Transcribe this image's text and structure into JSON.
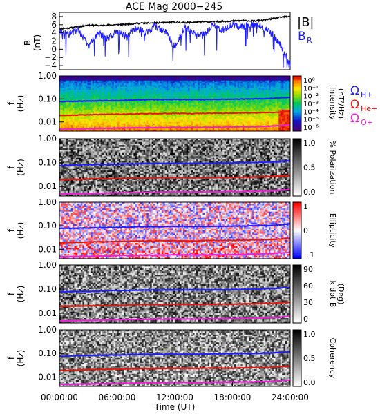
{
  "title": "ACE Mag 2000−245",
  "colors": {
    "ink": "#000000",
    "blue": "#1d1dff",
    "red": "#e8150c",
    "magenta": "#ee1fd8",
    "Bmag": "#000000",
    "BR": "#1d1dff"
  },
  "time_axis": {
    "label": "Time (UT)",
    "ticks": [
      "00:00:00",
      "06:00:00",
      "12:00:00",
      "18:00:00",
      "24:00:00"
    ],
    "range_hours": [
      0,
      24
    ]
  },
  "chart_data": [
    {
      "type": "line",
      "panel": "magnetic field",
      "ylabel": "B\n(nT)",
      "ylim": [
        -5,
        9
      ],
      "yticks": [
        "−4",
        "−2",
        "0",
        "2",
        "4",
        "6",
        "8"
      ],
      "legend": [
        "|B|",
        "B_R"
      ],
      "series": [
        {
          "name": "|B|",
          "color": "#000000",
          "x_hours": [
            0,
            1,
            2,
            3,
            4,
            5,
            6,
            7,
            8,
            9,
            10,
            11,
            12,
            13,
            14,
            15,
            16,
            17,
            18,
            19,
            20,
            21,
            22,
            23,
            24
          ],
          "values": [
            5.0,
            5.2,
            5.5,
            5.9,
            5.8,
            5.9,
            6.0,
            6.1,
            6.3,
            6.4,
            6.4,
            6.5,
            6.6,
            6.5,
            6.6,
            6.7,
            6.7,
            6.8,
            6.9,
            7.0,
            6.9,
            7.0,
            7.4,
            7.8,
            8.1
          ]
        },
        {
          "name": "B_R",
          "color": "#1d1dff",
          "x_hours": [
            0,
            1,
            2,
            3,
            4,
            5,
            6,
            7,
            8,
            9,
            10,
            11,
            12,
            13,
            14,
            15,
            16,
            17,
            18,
            19,
            20,
            21,
            22,
            23,
            24
          ],
          "values": [
            4.1,
            3.6,
            4.8,
            0.8,
            4.0,
            2.5,
            4.6,
            3.2,
            5.2,
            4.0,
            5.6,
            4.5,
            0.5,
            5.3,
            4.0,
            3.5,
            5.9,
            4.7,
            6.0,
            5.6,
            6.1,
            5.7,
            4.0,
            1.0,
            -3.8
          ]
        }
      ]
    },
    {
      "type": "heatmap",
      "panel": "wave intensity",
      "ylabel": "f\n(Hz)",
      "ylim_log": [
        0.004,
        1.0
      ],
      "yticks": [
        "1.00",
        "0.10",
        "0.01"
      ],
      "colorbar": {
        "label": "Intensity\n(nT²/Hz)",
        "ticks": [
          "10⁰",
          "10⁻¹",
          "10⁻²",
          "10⁻³",
          "10⁻⁴",
          "10⁻⁵",
          "10⁻⁶"
        ],
        "scale": "rainbow"
      },
      "legend": [
        "ΩH+",
        "ΩHe+",
        "ΩO+"
      ]
    },
    {
      "type": "heatmap",
      "panel": "polarization",
      "ylabel": "f\n(Hz)",
      "yticks": [
        "1.00",
        "0.10",
        "0.01"
      ],
      "colorbar": {
        "label": "% Polarization",
        "ticks": [
          "1.0",
          "0.5",
          "0.0"
        ],
        "scale": "gray"
      }
    },
    {
      "type": "heatmap",
      "panel": "ellipticity",
      "ylabel": "f\n(Hz)",
      "yticks": [
        "1.00",
        "0.10",
        "0.01"
      ],
      "colorbar": {
        "label": "Ellipticity",
        "ticks": [
          "1",
          "0",
          "−1"
        ],
        "scale": "bluewhitered"
      }
    },
    {
      "type": "heatmap",
      "panel": "k dot B",
      "ylabel": "f\n(Hz)",
      "yticks": [
        "1.00",
        "0.10",
        "0.01"
      ],
      "colorbar": {
        "label": "k dot B\n(Deg)",
        "ticks": [
          "90",
          "60",
          "30",
          "0"
        ],
        "scale": "gray"
      }
    },
    {
      "type": "heatmap",
      "panel": "coherency",
      "ylabel": "f\n(Hz)",
      "yticks": [
        "1.00",
        "0.10",
        "0.01"
      ],
      "colorbar": {
        "label": "Coherency",
        "ticks": [
          "1.0",
          "0.5",
          "0.0"
        ],
        "scale": "gray"
      }
    },
    {
      "type": "line",
      "panel": "gyrofrequencies",
      "x_hours": [
        0,
        2,
        4,
        6,
        8,
        10,
        12,
        14,
        16,
        18,
        20,
        22,
        24
      ],
      "series": [
        {
          "name": "ΩH+",
          "color": "#1d1dff",
          "values": [
            0.076,
            0.08,
            0.083,
            0.086,
            0.09,
            0.092,
            0.094,
            0.093,
            0.095,
            0.097,
            0.1,
            0.105,
            0.118
          ]
        },
        {
          "name": "ΩHe+",
          "color": "#e8150c",
          "values": [
            0.019,
            0.02,
            0.021,
            0.0215,
            0.0225,
            0.023,
            0.0235,
            0.023,
            0.024,
            0.024,
            0.025,
            0.026,
            0.029
          ]
        },
        {
          "name": "ΩO+",
          "color": "#ee1fd8",
          "values": [
            0.0048,
            0.005,
            0.0052,
            0.0054,
            0.0056,
            0.0057,
            0.0059,
            0.0058,
            0.0059,
            0.0061,
            0.0062,
            0.0066,
            0.0074
          ]
        }
      ]
    }
  ]
}
